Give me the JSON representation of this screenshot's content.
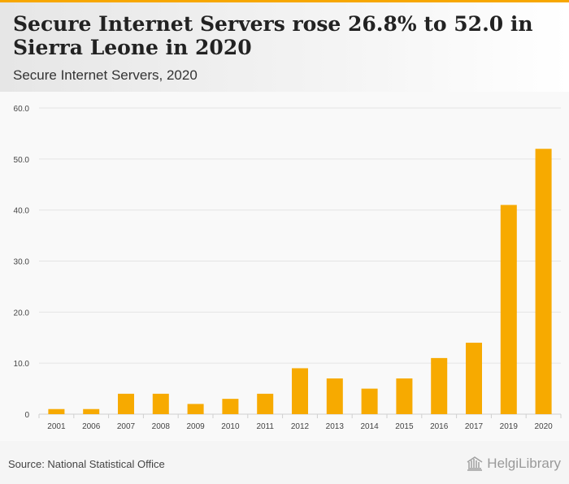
{
  "header": {
    "title": "Secure Internet Servers rose 26.8% to 52.0 in Sierra Leone in 2020",
    "subtitle": "Secure Internet Servers, 2020"
  },
  "chart_data": {
    "type": "bar",
    "title": "Secure Internet Servers, 2020",
    "xlabel": "",
    "ylabel": "",
    "categories": [
      "2001",
      "2006",
      "2007",
      "2008",
      "2009",
      "2010",
      "2011",
      "2012",
      "2013",
      "2014",
      "2015",
      "2016",
      "2017",
      "2019",
      "2020"
    ],
    "values": [
      1,
      1,
      4,
      4,
      2,
      3,
      4,
      9,
      7,
      5,
      7,
      11,
      14,
      41,
      52
    ],
    "ylim": [
      0,
      60
    ],
    "yticks": [
      "0",
      "10.0",
      "20.0",
      "30.0",
      "40.0",
      "50.0",
      "60.0"
    ],
    "grid": true,
    "bar_color": "#f7aa00"
  },
  "footer": {
    "source": "Source: National Statistical Office",
    "logo_text": "HelgiLibrary",
    "logo_icon": "library-building-icon"
  }
}
